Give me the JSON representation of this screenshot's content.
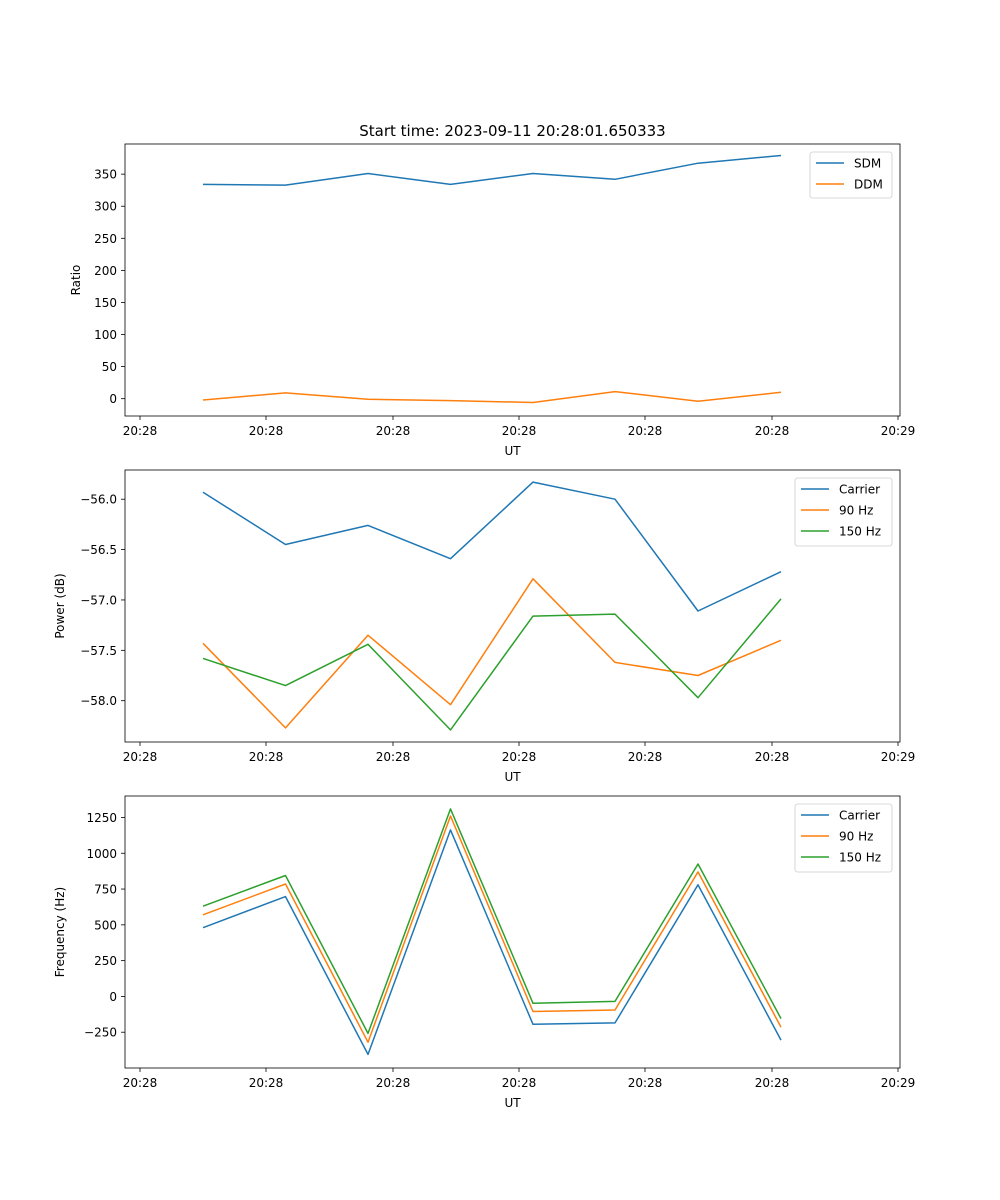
{
  "chart_data": [
    {
      "type": "line",
      "title": "Start time: 2023-09-11 20:28:01.650333",
      "xlabel": "UT",
      "ylabel": "Ratio",
      "xticks": [
        "20:28",
        "20:28",
        "20:28",
        "20:28",
        "20:28",
        "20:28",
        "20:29"
      ],
      "ylim": [
        -27,
        397
      ],
      "yticks": [
        0,
        50,
        100,
        150,
        200,
        250,
        300,
        350
      ],
      "legend": "top-right",
      "series": [
        {
          "name": "SDM",
          "color": "#1f77b4",
          "values": [
            334,
            333,
            351,
            334,
            351,
            342,
            367,
            379
          ]
        },
        {
          "name": "DDM",
          "color": "#ff7f0e",
          "values": [
            -2,
            9,
            -1,
            -3,
            -6,
            11,
            -4,
            10
          ]
        }
      ]
    },
    {
      "type": "line",
      "title": "",
      "xlabel": "UT",
      "ylabel": "Power (dB)",
      "xticks": [
        "20:28",
        "20:28",
        "20:28",
        "20:28",
        "20:28",
        "20:28",
        "20:29"
      ],
      "ylim": [
        -58.41,
        -55.71
      ],
      "yticks": [
        -56.0,
        -56.5,
        -57.0,
        -57.5,
        -58.0
      ],
      "legend": "top-right",
      "series": [
        {
          "name": "Carrier",
          "color": "#1f77b4",
          "values": [
            -55.93,
            -56.45,
            -56.26,
            -56.59,
            -55.83,
            -56.0,
            -57.11,
            -56.72
          ]
        },
        {
          "name": "90 Hz",
          "color": "#ff7f0e",
          "values": [
            -57.43,
            -58.27,
            -57.35,
            -58.04,
            -56.79,
            -57.62,
            -57.75,
            -57.4
          ]
        },
        {
          "name": "150 Hz",
          "color": "#2ca02c",
          "values": [
            -57.58,
            -57.85,
            -57.44,
            -58.29,
            -57.16,
            -57.14,
            -57.97,
            -56.99
          ]
        }
      ]
    },
    {
      "type": "line",
      "title": "",
      "xlabel": "UT",
      "ylabel": "Frequency (Hz)",
      "xticks": [
        "20:28",
        "20:28",
        "20:28",
        "20:28",
        "20:28",
        "20:28",
        "20:29"
      ],
      "ylim": [
        -500,
        1400
      ],
      "yticks": [
        1250,
        1000,
        750,
        500,
        250,
        0,
        -250
      ],
      "legend": "top-right",
      "series": [
        {
          "name": "Carrier",
          "color": "#1f77b4",
          "values": [
            480,
            697,
            -405,
            1163,
            -195,
            -185,
            780,
            -305
          ]
        },
        {
          "name": "90 Hz",
          "color": "#ff7f0e",
          "values": [
            570,
            785,
            -320,
            1260,
            -105,
            -95,
            870,
            -215
          ]
        },
        {
          "name": "150 Hz",
          "color": "#2ca02c",
          "values": [
            630,
            845,
            -258,
            1310,
            -48,
            -35,
            925,
            -155
          ]
        }
      ]
    }
  ]
}
